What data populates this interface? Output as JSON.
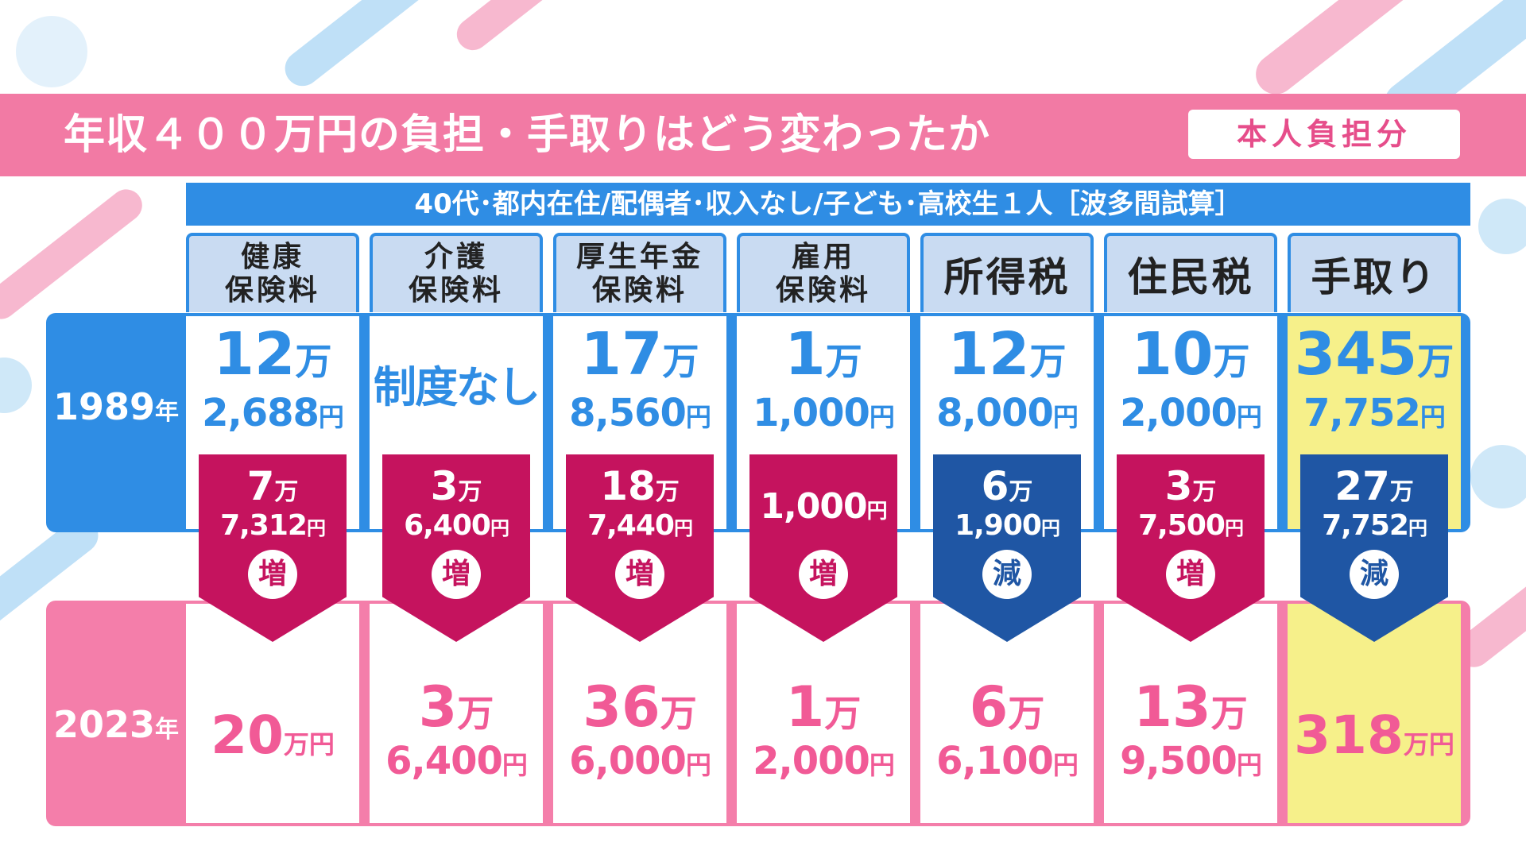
{
  "title": "年収４００万円の負担・手取りはどう変わったか",
  "title_badge": "本人負担分",
  "subheader": "40代･都内在住/配偶者･収入なし/子ども･高校生１人［波多間試算］",
  "colors": {
    "pink_band": "#f27aa4",
    "blue_band": "#2f8de4",
    "increase": "#c5135e",
    "decrease": "#1f56a4",
    "highlight": "#f6f08a"
  },
  "years": {
    "y1989_num": "1989",
    "y2023_num": "2023",
    "suffix": "年"
  },
  "columns": [
    {
      "header": "健康\n保険料",
      "header_size": "small",
      "y1989": {
        "main": "12",
        "main_unit": "万",
        "sub": "2,688",
        "sub_unit": "円"
      },
      "change": {
        "main": "7",
        "main_unit": "万",
        "sub": "7,312",
        "sub_unit": "円",
        "dir": "inc",
        "label": "増"
      },
      "y2023": {
        "single": "20",
        "single_unit": "万円"
      }
    },
    {
      "header": "介護\n保険料",
      "header_size": "small",
      "y1989": {
        "text": "制度なし"
      },
      "change": {
        "main": "3",
        "main_unit": "万",
        "sub": "6,400",
        "sub_unit": "円",
        "dir": "inc",
        "label": "増"
      },
      "y2023": {
        "main": "3",
        "main_unit": "万",
        "sub": "6,400",
        "sub_unit": "円"
      }
    },
    {
      "header": "厚生年金\n保険料",
      "header_size": "small",
      "y1989": {
        "main": "17",
        "main_unit": "万",
        "sub": "8,560",
        "sub_unit": "円"
      },
      "change": {
        "main": "18",
        "main_unit": "万",
        "sub": "7,440",
        "sub_unit": "円",
        "dir": "inc",
        "label": "増"
      },
      "y2023": {
        "main": "36",
        "main_unit": "万",
        "sub": "6,000",
        "sub_unit": "円"
      }
    },
    {
      "header": "雇用\n保険料",
      "header_size": "small",
      "y1989": {
        "main": "1",
        "main_unit": "万",
        "sub": "1,000",
        "sub_unit": "円"
      },
      "change": {
        "single": "1,000",
        "single_unit": "円",
        "dir": "inc",
        "label": "増"
      },
      "y2023": {
        "main": "1",
        "main_unit": "万",
        "sub": "2,000",
        "sub_unit": "円"
      }
    },
    {
      "header": "所得税",
      "header_size": "large",
      "y1989": {
        "main": "12",
        "main_unit": "万",
        "sub": "8,000",
        "sub_unit": "円"
      },
      "change": {
        "main": "6",
        "main_unit": "万",
        "sub": "1,900",
        "sub_unit": "円",
        "dir": "dec",
        "label": "減"
      },
      "y2023": {
        "main": "6",
        "main_unit": "万",
        "sub": "6,100",
        "sub_unit": "円"
      }
    },
    {
      "header": "住民税",
      "header_size": "large",
      "y1989": {
        "main": "10",
        "main_unit": "万",
        "sub": "2,000",
        "sub_unit": "円"
      },
      "change": {
        "main": "3",
        "main_unit": "万",
        "sub": "7,500",
        "sub_unit": "円",
        "dir": "inc",
        "label": "増"
      },
      "y2023": {
        "main": "13",
        "main_unit": "万",
        "sub": "9,500",
        "sub_unit": "円"
      }
    },
    {
      "header": "手取り",
      "header_size": "large",
      "highlight": true,
      "y1989": {
        "main": "345",
        "main_unit": "万",
        "sub": "7,752",
        "sub_unit": "円"
      },
      "change": {
        "main": "27",
        "main_unit": "万",
        "sub": "7,752",
        "sub_unit": "円",
        "dir": "dec",
        "label": "減"
      },
      "y2023": {
        "single": "318",
        "single_unit": "万円"
      }
    }
  ]
}
